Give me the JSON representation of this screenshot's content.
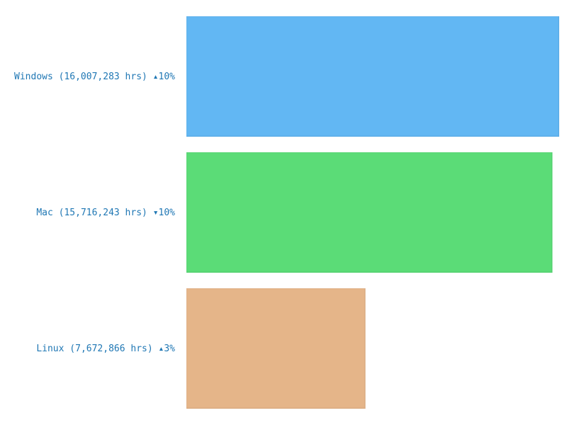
{
  "chart_data": {
    "type": "bar",
    "orientation": "horizontal",
    "categories": [
      "Windows (16,007,283 hrs) ▴10%",
      "Mac (15,716,243 hrs) ▾10%",
      "Linux (7,672,866 hrs) ▴3%"
    ],
    "values": [
      16007283,
      15716243,
      7672866
    ],
    "colors": [
      "#62b7f3",
      "#5bdc77",
      "#e5b589"
    ],
    "grid": false
  }
}
